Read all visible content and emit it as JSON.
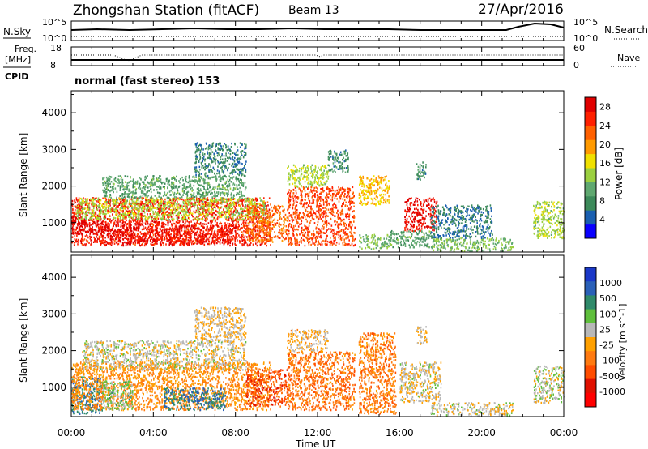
{
  "header": {
    "station": "Zhongshan Station (fitACF)",
    "beam": "Beam 13",
    "date": "27/Apr/2016"
  },
  "top_panel": {
    "left_label": "N.Sky",
    "right_label": "N.Search",
    "left_ticks": [
      "10^5",
      "10^0"
    ],
    "right_ticks": [
      "10^5",
      "10^0"
    ]
  },
  "freq_panel": {
    "left_label_1": "Freq.",
    "left_label_2": "[MHz]",
    "right_label": "Nave",
    "left_ticks": [
      "18",
      "8"
    ],
    "right_ticks": [
      "60",
      "0"
    ]
  },
  "cpid": {
    "label": "CPID",
    "text": "normal (fast stereo) 153"
  },
  "colors": {
    "power_scale": [
      "#0a00ff",
      "#1a5fb0",
      "#3c8a5a",
      "#5fa870",
      "#9bd040",
      "#f0e000",
      "#ff9a00",
      "#ff6000",
      "#ff2000",
      "#e00000"
    ],
    "velocity_scale": [
      "#1a38c8",
      "#2a60b8",
      "#2f8a6a",
      "#5fbf3c",
      "#b8b8b8",
      "#ffa000",
      "#ff7a10",
      "#ff4d00",
      "#e01000",
      "#ff0000"
    ]
  },
  "chart_data": [
    {
      "type": "heatmap",
      "title": "",
      "xlabel": "",
      "ylabel": "Slant Range [km]",
      "colorbar_label": "Power [dB]",
      "colorbar_ticks": [
        4,
        8,
        12,
        16,
        20,
        24,
        28
      ],
      "colorbar_range": [
        0,
        30
      ],
      "x_ticks": [
        "00:00",
        "04:00",
        "08:00",
        "12:00",
        "16:00",
        "20:00",
        "00:00"
      ],
      "y_ticks": [
        1000,
        2000,
        3000,
        4000
      ],
      "xlim": [
        0,
        24
      ],
      "ylim": [
        200,
        4600
      ],
      "regions": [
        {
          "t": [
            0.0,
            9.7
          ],
          "r": [
            400,
            1700
          ],
          "level": 26
        },
        {
          "t": [
            0.0,
            1.5
          ],
          "r": [
            700,
            1200
          ],
          "level": 30
        },
        {
          "t": [
            1.5,
            4.0
          ],
          "r": [
            450,
            1000
          ],
          "level": 28
        },
        {
          "t": [
            4.0,
            8.0
          ],
          "r": [
            450,
            950
          ],
          "level": 27
        },
        {
          "t": [
            0.2,
            9.5
          ],
          "r": [
            1100,
            1700
          ],
          "level": 14
        },
        {
          "t": [
            1.5,
            8.5
          ],
          "r": [
            1700,
            2300
          ],
          "level": 10
        },
        {
          "t": [
            6.0,
            8.5
          ],
          "r": [
            2300,
            3200
          ],
          "level": 7
        },
        {
          "t": [
            8.5,
            10.5
          ],
          "r": [
            500,
            1500
          ],
          "level": 22
        },
        {
          "t": [
            10.5,
            13.8
          ],
          "r": [
            400,
            2000
          ],
          "level": 24
        },
        {
          "t": [
            10.5,
            12.5
          ],
          "r": [
            2000,
            2600
          ],
          "level": 14
        },
        {
          "t": [
            12.5,
            13.5
          ],
          "r": [
            2400,
            3000
          ],
          "level": 8
        },
        {
          "t": [
            14.0,
            15.5
          ],
          "r": [
            1500,
            2300
          ],
          "level": 18
        },
        {
          "t": [
            14.0,
            15.5
          ],
          "r": [
            300,
            700
          ],
          "level": 12
        },
        {
          "t": [
            15.5,
            17.5
          ],
          "r": [
            350,
            800
          ],
          "level": 10
        },
        {
          "t": [
            16.2,
            17.8
          ],
          "r": [
            800,
            1700
          ],
          "level": 28
        },
        {
          "t": [
            16.8,
            17.3
          ],
          "r": [
            2200,
            2700
          ],
          "level": 8
        },
        {
          "t": [
            17.5,
            21.5
          ],
          "r": [
            250,
            600
          ],
          "level": 12
        },
        {
          "t": [
            17.5,
            20.5
          ],
          "r": [
            600,
            1500
          ],
          "level": 6
        },
        {
          "t": [
            22.5,
            24.0
          ],
          "r": [
            600,
            1600
          ],
          "level": 14
        }
      ]
    },
    {
      "type": "heatmap",
      "title": "",
      "xlabel": "Time UT",
      "ylabel": "Slant Range [km]",
      "colorbar_label": "Velocity [m s^-1]",
      "colorbar_ticks": [
        1000,
        500,
        100,
        25,
        -25,
        -100,
        -500,
        -1000
      ],
      "colorbar_range": [
        -1200,
        1200
      ],
      "x_ticks": [
        "00:00",
        "04:00",
        "08:00",
        "12:00",
        "16:00",
        "20:00",
        "00:00"
      ],
      "y_ticks": [
        1000,
        2000,
        3000,
        4000
      ],
      "xlim": [
        0,
        24
      ],
      "ylim": [
        200,
        4600
      ],
      "regions": [
        {
          "t": [
            0.0,
            1.5
          ],
          "r": [
            300,
            1300
          ],
          "level": 700
        },
        {
          "t": [
            0.0,
            9.7
          ],
          "r": [
            400,
            1700
          ],
          "level": -250
        },
        {
          "t": [
            1.5,
            3.0
          ],
          "r": [
            400,
            1200
          ],
          "level": 300
        },
        {
          "t": [
            4.5,
            7.5
          ],
          "r": [
            400,
            1000
          ],
          "level": 700
        },
        {
          "t": [
            0.5,
            8.5
          ],
          "r": [
            1500,
            2300
          ],
          "level": 80
        },
        {
          "t": [
            6.0,
            8.5
          ],
          "r": [
            2300,
            3200
          ],
          "level": 0
        },
        {
          "t": [
            8.5,
            10.5
          ],
          "r": [
            500,
            1500
          ],
          "level": -600
        },
        {
          "t": [
            10.5,
            13.8
          ],
          "r": [
            400,
            2000
          ],
          "level": -400
        },
        {
          "t": [
            10.5,
            12.5
          ],
          "r": [
            2000,
            2600
          ],
          "level": -60
        },
        {
          "t": [
            14.0,
            15.8
          ],
          "r": [
            300,
            2500
          ],
          "level": -350
        },
        {
          "t": [
            16.0,
            18.0
          ],
          "r": [
            600,
            1700
          ],
          "level": 60
        },
        {
          "t": [
            16.8,
            17.3
          ],
          "r": [
            2200,
            2700
          ],
          "level": 0
        },
        {
          "t": [
            17.5,
            21.5
          ],
          "r": [
            250,
            600
          ],
          "level": 90
        },
        {
          "t": [
            22.5,
            24.0
          ],
          "r": [
            600,
            1600
          ],
          "level": 150
        }
      ]
    }
  ]
}
